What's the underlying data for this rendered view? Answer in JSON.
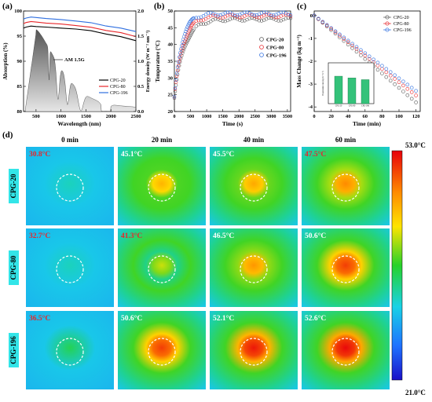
{
  "panels": {
    "a": {
      "label": "(a)"
    },
    "b": {
      "label": "(b)"
    },
    "c": {
      "label": "(c)"
    },
    "d": {
      "label": "(d)"
    }
  },
  "chart_data": [
    {
      "id": "a",
      "type": "line",
      "xlabel": "Wavelength (nm)",
      "ylabel": "Absorption (%)",
      "y2label": "Energy density (W m⁻² nm⁻¹)",
      "xlim": [
        250,
        2500
      ],
      "ylim": [
        80,
        100
      ],
      "y2lim": [
        0,
        2.0
      ],
      "xticks": [
        "500",
        "1000",
        "1500",
        "2000",
        "2500"
      ],
      "yticks": [
        "80",
        "85",
        "90",
        "95",
        "100"
      ],
      "y2ticks": [
        "0.0",
        "0.5",
        "1.0",
        "1.5",
        "2.0"
      ],
      "annotation": "AM 1.5G",
      "legend_position": "bottom-right",
      "series": [
        {
          "name": "CPG-20",
          "color": "#000000",
          "x": [
            250,
            300,
            400,
            500,
            700,
            1000,
            1300,
            1600,
            1900,
            2200,
            2500
          ],
          "values": [
            96.6,
            96.8,
            97.0,
            96.9,
            96.8,
            96.6,
            96.4,
            96.0,
            95.5,
            94.8,
            94.2
          ]
        },
        {
          "name": "CPG-80",
          "color": "#e8262a",
          "x": [
            250,
            300,
            400,
            500,
            700,
            1000,
            1300,
            1600,
            1900,
            2200,
            2500
          ],
          "values": [
            97.5,
            97.7,
            97.9,
            97.8,
            97.6,
            97.4,
            97.1,
            96.7,
            96.2,
            95.6,
            95.0
          ]
        },
        {
          "name": "CPG-196",
          "color": "#2f6fe0",
          "x": [
            250,
            300,
            400,
            500,
            700,
            1000,
            1300,
            1600,
            1900,
            2200,
            2500
          ],
          "values": [
            98.4,
            98.6,
            98.8,
            98.7,
            98.5,
            98.3,
            98.0,
            97.6,
            97.1,
            96.5,
            96.0
          ]
        }
      ]
    },
    {
      "id": "b",
      "type": "scatter",
      "xlabel": "Time (s)",
      "ylabel": "Temperature (°C)",
      "xlim": [
        0,
        3600
      ],
      "ylim": [
        20,
        50
      ],
      "xticks": [
        "0",
        "500",
        "1000",
        "1500",
        "2000",
        "2500",
        "3000",
        "3500"
      ],
      "yticks": [
        "20",
        "25",
        "30",
        "35",
        "40",
        "45",
        "50"
      ],
      "legend_position": "middle-right",
      "series": [
        {
          "name": "CPG-20",
          "color": "#555555",
          "tau": 300,
          "start": 24,
          "end": 47.5
        },
        {
          "name": "CPG-80",
          "color": "#e8262a",
          "tau": 260,
          "start": 24,
          "end": 48.5
        },
        {
          "name": "CPG-196",
          "color": "#2f6fe0",
          "tau": 220,
          "start": 24,
          "end": 49.2
        }
      ]
    },
    {
      "id": "c",
      "type": "line",
      "xlabel": "Time (min)",
      "ylabel": "Mass Change (kg m⁻²)",
      "xlim": [
        0,
        125
      ],
      "ylim": [
        -4.2,
        0.2
      ],
      "xticks": [
        "0",
        "20",
        "40",
        "60",
        "80",
        "100",
        "120"
      ],
      "yticks": [
        "0",
        "-1",
        "-2",
        "-3",
        "-4"
      ],
      "legend_position": "top-right",
      "series": [
        {
          "name": "CPG-20",
          "color": "#555555",
          "x": [
            0,
            120
          ],
          "values": [
            0,
            -3.8
          ]
        },
        {
          "name": "CPG-80",
          "color": "#e8262a",
          "x": [
            0,
            120
          ],
          "values": [
            0,
            -3.5
          ]
        },
        {
          "name": "CPG-196",
          "color": "#2f6fe0",
          "x": [
            0,
            120
          ],
          "values": [
            0,
            -3.3
          ]
        }
      ],
      "inset": {
        "type": "bar",
        "ylabel": "Evaporation rate (kg m⁻² h⁻¹)",
        "categories": [
          "CPG-20",
          "CPG-80",
          "CPG-196"
        ],
        "values": [
          1.9,
          1.78,
          1.66
        ],
        "ylim": [
          0,
          2.5
        ]
      }
    }
  ],
  "thermal": {
    "time_headers": [
      "0 min",
      "20 min",
      "40 min",
      "60 min"
    ],
    "rows": [
      {
        "label": "CPG-20",
        "temps": [
          "30.8°C",
          "45.1°C",
          "45.5°C",
          "47.5°C"
        ],
        "temp_colors": [
          "#e8262a",
          "#ffffff",
          "#ffffff",
          "#e8262a"
        ]
      },
      {
        "label": "CPG-80",
        "temps": [
          "32.7°C",
          "41.3°C",
          "46.5°C",
          "50.6°C"
        ],
        "temp_colors": [
          "#e8262a",
          "#e8262a",
          "#ffffff",
          "#ffffff"
        ]
      },
      {
        "label": "CPG-196",
        "temps": [
          "36.5°C",
          "50.6°C",
          "52.1°C",
          "52.6°C"
        ],
        "temp_colors": [
          "#e8262a",
          "#ffffff",
          "#ffffff",
          "#ffffff"
        ]
      }
    ],
    "colorbar": {
      "max": "53.0°C",
      "min": "21.0°C"
    },
    "levels": [
      [
        0.3,
        0.75,
        0.77,
        0.82
      ],
      [
        0.36,
        0.63,
        0.8,
        0.92
      ],
      [
        0.48,
        0.92,
        0.97,
        0.99
      ]
    ]
  }
}
